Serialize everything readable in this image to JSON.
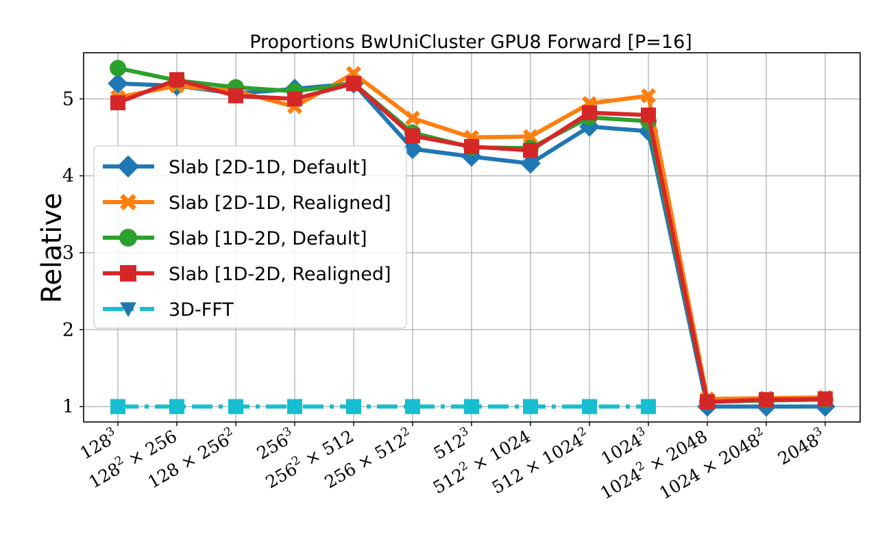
{
  "chart_data": {
    "type": "line",
    "title": "Proportions BwUniCluster GPU8 Forward [P=16]",
    "xlabel": "",
    "ylabel": "Relative",
    "ylim": [
      0.8,
      5.6
    ],
    "yticks": [
      1,
      2,
      3,
      4,
      5
    ],
    "grid": true,
    "legend_position": "left",
    "categories": [
      {
        "base": "128",
        "exp": "3",
        "rest": ""
      },
      {
        "base": "128",
        "exp": "2",
        "rest": " × 256"
      },
      {
        "base": "128 × 256",
        "exp": "2",
        "rest": ""
      },
      {
        "base": "256",
        "exp": "3",
        "rest": ""
      },
      {
        "base": "256",
        "exp": "2",
        "rest": " × 512"
      },
      {
        "base": "256 × 512",
        "exp": "2",
        "rest": ""
      },
      {
        "base": "512",
        "exp": "3",
        "rest": ""
      },
      {
        "base": "512",
        "exp": "2",
        "rest": " × 1024"
      },
      {
        "base": "512 × 1024",
        "exp": "2",
        "rest": ""
      },
      {
        "base": "1024",
        "exp": "3",
        "rest": ""
      },
      {
        "base": "1024",
        "exp": "2",
        "rest": " × 2048"
      },
      {
        "base": "1024 × 2048",
        "exp": "2",
        "rest": ""
      },
      {
        "base": "2048",
        "exp": "3",
        "rest": ""
      }
    ],
    "series": [
      {
        "name": "3D-FFT",
        "color": "#17becf",
        "marker": "square",
        "linestyle": "dashdot",
        "values": [
          1,
          1,
          1,
          1,
          1,
          1,
          1,
          1,
          1,
          1,
          null,
          null,
          null
        ]
      },
      {
        "name": "Slab [2D-1D, Default]",
        "color": "#1f77b4",
        "marker": "diamond",
        "linestyle": "solid",
        "values": [
          5.2,
          5.17,
          5.07,
          5.13,
          5.2,
          4.35,
          4.25,
          4.16,
          4.64,
          4.58,
          1.0,
          1.0,
          1.0
        ]
      },
      {
        "name": "Slab [2D-1D, Realigned]",
        "color": "#ff7f0e",
        "marker": "x",
        "linestyle": "solid",
        "values": [
          5.02,
          5.17,
          5.1,
          4.9,
          5.33,
          4.75,
          4.5,
          4.51,
          4.94,
          5.04,
          1.1,
          1.11,
          1.12
        ]
      },
      {
        "name": "Slab [1D-2D, Default]",
        "color": "#2ca02c",
        "marker": "circle",
        "linestyle": "solid",
        "values": [
          5.4,
          5.24,
          5.15,
          5.1,
          5.2,
          4.56,
          4.37,
          4.36,
          4.76,
          4.71,
          1.06,
          1.08,
          1.09
        ]
      },
      {
        "name": "Slab [1D-2D, Realigned]",
        "color": "#d62728",
        "marker": "square",
        "linestyle": "solid",
        "values": [
          4.95,
          5.25,
          5.04,
          5.0,
          5.2,
          4.52,
          4.38,
          4.33,
          4.82,
          4.79,
          1.06,
          1.09,
          1.1
        ]
      }
    ],
    "legend_order": [
      1,
      2,
      3,
      4,
      0
    ],
    "legend_marker_for_3dfft": {
      "color": "#1f77b4",
      "marker": "triangle-down"
    }
  }
}
